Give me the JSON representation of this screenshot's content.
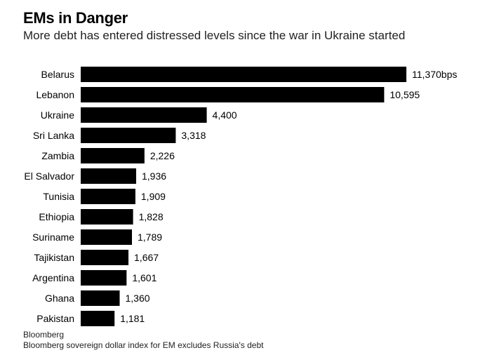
{
  "chart_data": {
    "type": "bar",
    "orientation": "horizontal",
    "title": "EMs in Danger",
    "subtitle": "More debt has entered distressed levels since the war in Ukraine started",
    "categories": [
      "Belarus",
      "Lebanon",
      "Ukraine",
      "Sri Lanka",
      "Zambia",
      "El Salvador",
      "Tunisia",
      "Ethiopia",
      "Suriname",
      "Tajikistan",
      "Argentina",
      "Ghana",
      "Pakistan"
    ],
    "values": [
      11370,
      10595,
      4400,
      3318,
      2226,
      1936,
      1909,
      1828,
      1789,
      1667,
      1601,
      1360,
      1181
    ],
    "value_labels": [
      "11,370bps",
      "10,595",
      "4,400",
      "3,318",
      "2,226",
      "1,936",
      "1,909",
      "1,828",
      "1,789",
      "1,667",
      "1,601",
      "1,360",
      "1,181"
    ],
    "unit": "bps",
    "bar_color": "#000000",
    "xlabel": "",
    "ylabel": "",
    "xlim": [
      0,
      11370
    ]
  },
  "source": {
    "line1": "Bloomberg",
    "line2": "Bloomberg sovereign dollar index for EM excludes Russia's debt"
  }
}
